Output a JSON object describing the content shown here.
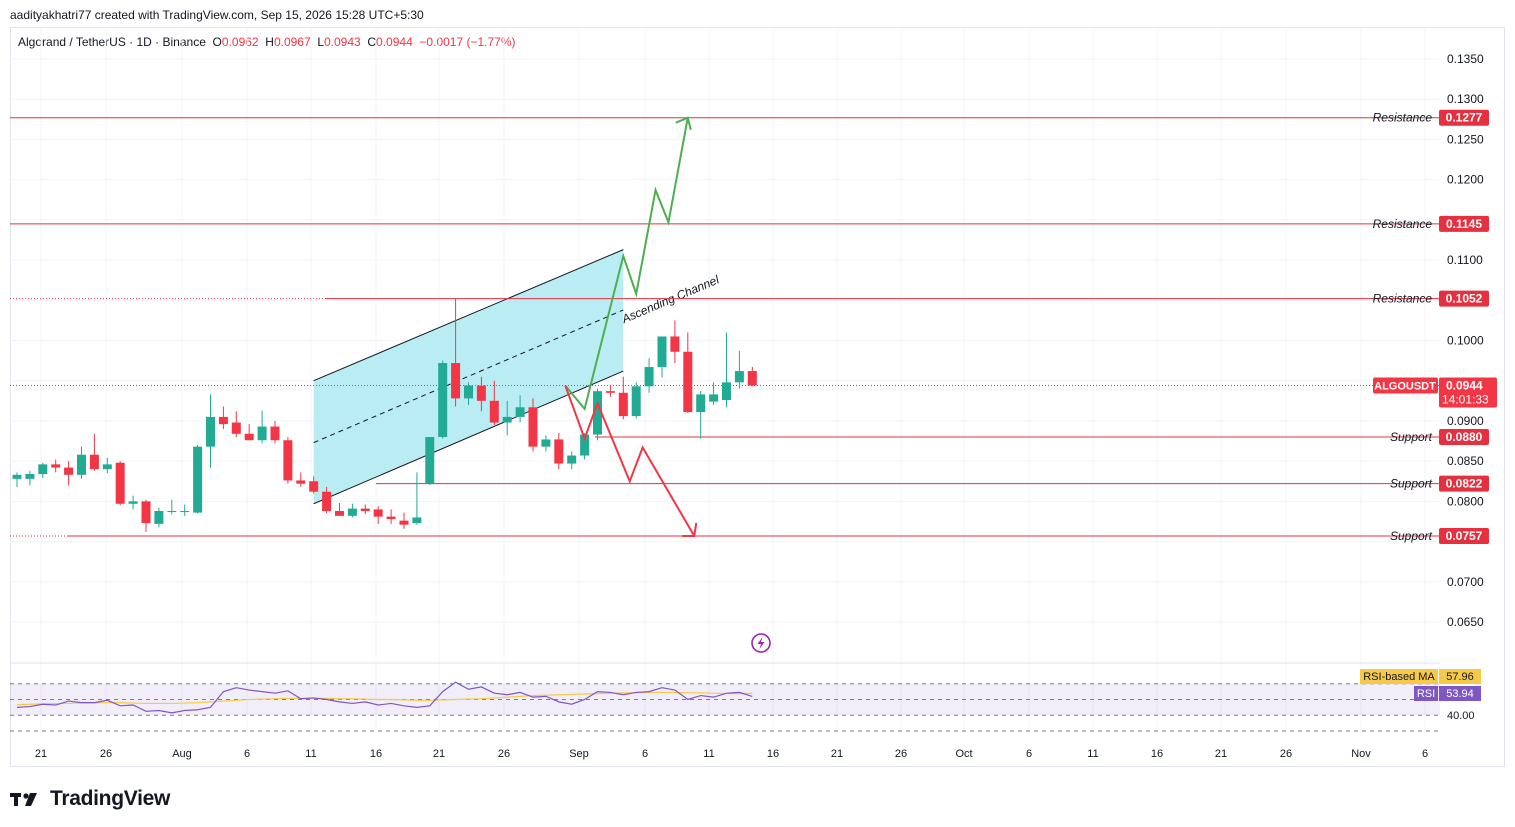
{
  "header": {
    "attribution": "aadityakhatri77 created with TradingView.com, Sep 15, 2026 15:28 UTC+5:30"
  },
  "legend": {
    "symbol": "Algorand / TetherUS · 1D · Binance",
    "o_label": "O",
    "o": "0.0962",
    "h_label": "H",
    "h": "0.0967",
    "l_label": "L",
    "l": "0.0943",
    "c_label": "C",
    "c": "0.0944",
    "change": "−0.0017 (−1.77%)"
  },
  "colors": {
    "up": "#22ab94",
    "down": "#f23645",
    "level_line": "#e5303f",
    "channel_fill": "#b2ebf2",
    "green_path": "#4caf50",
    "red_path": "#f23645",
    "rsi_line": "#7e57c2",
    "rsi_ma": "#f7c948"
  },
  "chart_data": [
    {
      "type": "candlestick",
      "title": "Algorand / TetherUS · 1D · Binance",
      "x_ticks": [
        "21",
        "26",
        "Aug",
        "6",
        "11",
        "16",
        "21",
        "26",
        "Sep",
        "6",
        "11",
        "16",
        "21",
        "26",
        "Oct",
        "6",
        "11",
        "16",
        "21",
        "26",
        "Nov",
        "6"
      ],
      "y_ticks": [
        "0.1350",
        "0.1300",
        "0.1250",
        "0.1200",
        "0.1100",
        "0.1000",
        "0.0900",
        "0.0850",
        "0.0800",
        "0.0700",
        "0.0650"
      ],
      "ylim": [
        0.06,
        0.138
      ],
      "current_price": {
        "symbol": "ALGOUSDT",
        "value": "0.0944",
        "countdown": "14:01:33"
      },
      "levels": [
        {
          "label": "Resistance",
          "value": "0.1277"
        },
        {
          "label": "Resistance",
          "value": "0.1145"
        },
        {
          "label": "Resistance",
          "value": "0.1052"
        },
        {
          "label": "Support",
          "value": "0.0880"
        },
        {
          "label": "Support",
          "value": "0.0822"
        },
        {
          "label": "Support",
          "value": "0.0757"
        }
      ],
      "annotations": [
        {
          "text": "Ascending Channel"
        }
      ],
      "candles": [
        {
          "o": 0.0828,
          "h": 0.0836,
          "l": 0.0818,
          "c": 0.0833
        },
        {
          "o": 0.0828,
          "h": 0.0838,
          "l": 0.082,
          "c": 0.0834
        },
        {
          "o": 0.0834,
          "h": 0.0848,
          "l": 0.0829,
          "c": 0.0846
        },
        {
          "o": 0.0846,
          "h": 0.0852,
          "l": 0.0836,
          "c": 0.0842
        },
        {
          "o": 0.0842,
          "h": 0.085,
          "l": 0.082,
          "c": 0.0833
        },
        {
          "o": 0.0833,
          "h": 0.0868,
          "l": 0.0828,
          "c": 0.0858
        },
        {
          "o": 0.0858,
          "h": 0.0884,
          "l": 0.0838,
          "c": 0.084
        },
        {
          "o": 0.084,
          "h": 0.0854,
          "l": 0.0835,
          "c": 0.0846
        },
        {
          "o": 0.0848,
          "h": 0.085,
          "l": 0.0795,
          "c": 0.0797
        },
        {
          "o": 0.0797,
          "h": 0.0807,
          "l": 0.079,
          "c": 0.08
        },
        {
          "o": 0.08,
          "h": 0.0802,
          "l": 0.0762,
          "c": 0.0773
        },
        {
          "o": 0.0772,
          "h": 0.0792,
          "l": 0.0768,
          "c": 0.0788
        },
        {
          "o": 0.0788,
          "h": 0.0802,
          "l": 0.0784,
          "c": 0.0788
        },
        {
          "o": 0.0788,
          "h": 0.0796,
          "l": 0.0782,
          "c": 0.0788
        },
        {
          "o": 0.0786,
          "h": 0.087,
          "l": 0.0785,
          "c": 0.0868
        },
        {
          "o": 0.0868,
          "h": 0.0933,
          "l": 0.0842,
          "c": 0.0905
        },
        {
          "o": 0.0905,
          "h": 0.0918,
          "l": 0.089,
          "c": 0.0896
        },
        {
          "o": 0.0898,
          "h": 0.0912,
          "l": 0.088,
          "c": 0.0884
        },
        {
          "o": 0.0884,
          "h": 0.0896,
          "l": 0.0876,
          "c": 0.0876
        },
        {
          "o": 0.0876,
          "h": 0.0913,
          "l": 0.0872,
          "c": 0.0893
        },
        {
          "o": 0.0893,
          "h": 0.09,
          "l": 0.0872,
          "c": 0.0876
        },
        {
          "o": 0.0876,
          "h": 0.088,
          "l": 0.0822,
          "c": 0.0826
        },
        {
          "o": 0.0826,
          "h": 0.0836,
          "l": 0.0818,
          "c": 0.0822
        },
        {
          "o": 0.0825,
          "h": 0.0831,
          "l": 0.081,
          "c": 0.0812
        },
        {
          "o": 0.0812,
          "h": 0.0818,
          "l": 0.0785,
          "c": 0.0788
        },
        {
          "o": 0.0788,
          "h": 0.0798,
          "l": 0.0782,
          "c": 0.0782
        },
        {
          "o": 0.0782,
          "h": 0.0797,
          "l": 0.078,
          "c": 0.0791
        },
        {
          "o": 0.0791,
          "h": 0.0796,
          "l": 0.0784,
          "c": 0.0788
        },
        {
          "o": 0.079,
          "h": 0.0794,
          "l": 0.0772,
          "c": 0.0781
        },
        {
          "o": 0.0781,
          "h": 0.079,
          "l": 0.0772,
          "c": 0.0778
        },
        {
          "o": 0.0776,
          "h": 0.0786,
          "l": 0.0766,
          "c": 0.0771
        },
        {
          "o": 0.0773,
          "h": 0.0836,
          "l": 0.0771,
          "c": 0.078
        },
        {
          "o": 0.0822,
          "h": 0.088,
          "l": 0.082,
          "c": 0.088
        },
        {
          "o": 0.088,
          "h": 0.0975,
          "l": 0.0878,
          "c": 0.0972
        },
        {
          "o": 0.0972,
          "h": 0.1052,
          "l": 0.0918,
          "c": 0.0928
        },
        {
          "o": 0.0928,
          "h": 0.0948,
          "l": 0.092,
          "c": 0.0944
        },
        {
          "o": 0.0944,
          "h": 0.0955,
          "l": 0.0912,
          "c": 0.0925
        },
        {
          "o": 0.0925,
          "h": 0.095,
          "l": 0.0895,
          "c": 0.0898
        },
        {
          "o": 0.0898,
          "h": 0.0925,
          "l": 0.0882,
          "c": 0.0905
        },
        {
          "o": 0.0905,
          "h": 0.0932,
          "l": 0.0898,
          "c": 0.0917
        },
        {
          "o": 0.0917,
          "h": 0.0928,
          "l": 0.0862,
          "c": 0.0868
        },
        {
          "o": 0.0868,
          "h": 0.0882,
          "l": 0.0862,
          "c": 0.0877
        },
        {
          "o": 0.0877,
          "h": 0.0885,
          "l": 0.084,
          "c": 0.0847
        },
        {
          "o": 0.0847,
          "h": 0.0862,
          "l": 0.084,
          "c": 0.0857
        },
        {
          "o": 0.0857,
          "h": 0.0885,
          "l": 0.0852,
          "c": 0.0883
        },
        {
          "o": 0.0883,
          "h": 0.094,
          "l": 0.0876,
          "c": 0.0937
        },
        {
          "o": 0.0937,
          "h": 0.0945,
          "l": 0.093,
          "c": 0.0935
        },
        {
          "o": 0.0935,
          "h": 0.0955,
          "l": 0.0902,
          "c": 0.0906
        },
        {
          "o": 0.0906,
          "h": 0.0948,
          "l": 0.0903,
          "c": 0.0943
        },
        {
          "o": 0.0943,
          "h": 0.0978,
          "l": 0.0935,
          "c": 0.0967
        },
        {
          "o": 0.0967,
          "h": 0.1003,
          "l": 0.0954,
          "c": 0.1005
        },
        {
          "o": 0.1005,
          "h": 0.1025,
          "l": 0.0972,
          "c": 0.0986
        },
        {
          "o": 0.0986,
          "h": 0.101,
          "l": 0.091,
          "c": 0.0911
        },
        {
          "o": 0.0911,
          "h": 0.0937,
          "l": 0.0878,
          "c": 0.0933
        },
        {
          "o": 0.0924,
          "h": 0.0948,
          "l": 0.092,
          "c": 0.0933
        },
        {
          "o": 0.0926,
          "h": 0.101,
          "l": 0.0917,
          "c": 0.0948
        },
        {
          "o": 0.0948,
          "h": 0.0987,
          "l": 0.094,
          "c": 0.0962
        },
        {
          "o": 0.0962,
          "h": 0.0967,
          "l": 0.0943,
          "c": 0.0944
        }
      ],
      "channel": {
        "upper": [
          {
            "d": 23,
            "y": 0.095
          },
          {
            "d": 47,
            "y": 0.1113
          }
        ],
        "lower": [
          {
            "d": 23,
            "y": 0.0797
          },
          {
            "d": 47,
            "y": 0.0962
          }
        ],
        "mid": [
          {
            "d": 23,
            "y": 0.0873
          },
          {
            "d": 47,
            "y": 0.1038
          }
        ]
      },
      "bullish_path": [
        {
          "d": 42.5,
          "y": 0.0944
        },
        {
          "d": 44,
          "y": 0.0915
        },
        {
          "d": 47,
          "y": 0.1105
        },
        {
          "d": 48,
          "y": 0.1058
        },
        {
          "d": 49.5,
          "y": 0.1187
        },
        {
          "d": 50.5,
          "y": 0.1147
        },
        {
          "d": 52,
          "y": 0.1277
        },
        {
          "d": 52,
          "y": 0.126
        }
      ],
      "bearish_path": [
        {
          "d": 42.5,
          "y": 0.0944
        },
        {
          "d": 44,
          "y": 0.0878
        },
        {
          "d": 45,
          "y": 0.0922
        },
        {
          "d": 47.5,
          "y": 0.0825
        },
        {
          "d": 48.5,
          "y": 0.0867
        },
        {
          "d": 52.5,
          "y": 0.0757
        },
        {
          "d": 52.5,
          "y": 0.0775
        }
      ]
    },
    {
      "type": "line",
      "title": "RSI",
      "y_ticks": [
        "40.00"
      ],
      "series": [
        {
          "name": "RSI-based MA",
          "last": "57.96",
          "values": [
            43.5,
            44,
            44.5,
            45,
            45,
            45.5,
            45.5,
            46,
            46,
            45.5,
            45,
            45,
            45,
            45.5,
            46,
            47,
            48,
            49,
            50,
            50.5,
            51,
            51.5,
            51.5,
            51.5,
            51.5,
            51,
            51,
            50.5,
            50,
            50,
            49.5,
            49,
            49,
            49.5,
            50,
            50.5,
            51,
            52,
            53,
            54,
            55,
            55.5,
            56,
            56.5,
            57,
            57.5,
            58,
            58.5,
            58.5,
            59,
            59,
            59,
            58.5,
            58.5,
            58,
            57.5,
            57.5,
            57.96
          ]
        },
        {
          "name": "RSI",
          "last": "53.94",
          "values": [
            40,
            41,
            44,
            43,
            48,
            46,
            46,
            49,
            42,
            43,
            35,
            36,
            33,
            36,
            37,
            40,
            60,
            65,
            62,
            60,
            58,
            61,
            51,
            52,
            50,
            47,
            45,
            47,
            43,
            45,
            42,
            40,
            42,
            60,
            72,
            63,
            66,
            58,
            56,
            59,
            53,
            54,
            47,
            44,
            50,
            60,
            59,
            56,
            59,
            60,
            65,
            62,
            50,
            55,
            53,
            58,
            59,
            53.94
          ]
        }
      ]
    }
  ],
  "footer": {
    "brand": "TradingView"
  }
}
